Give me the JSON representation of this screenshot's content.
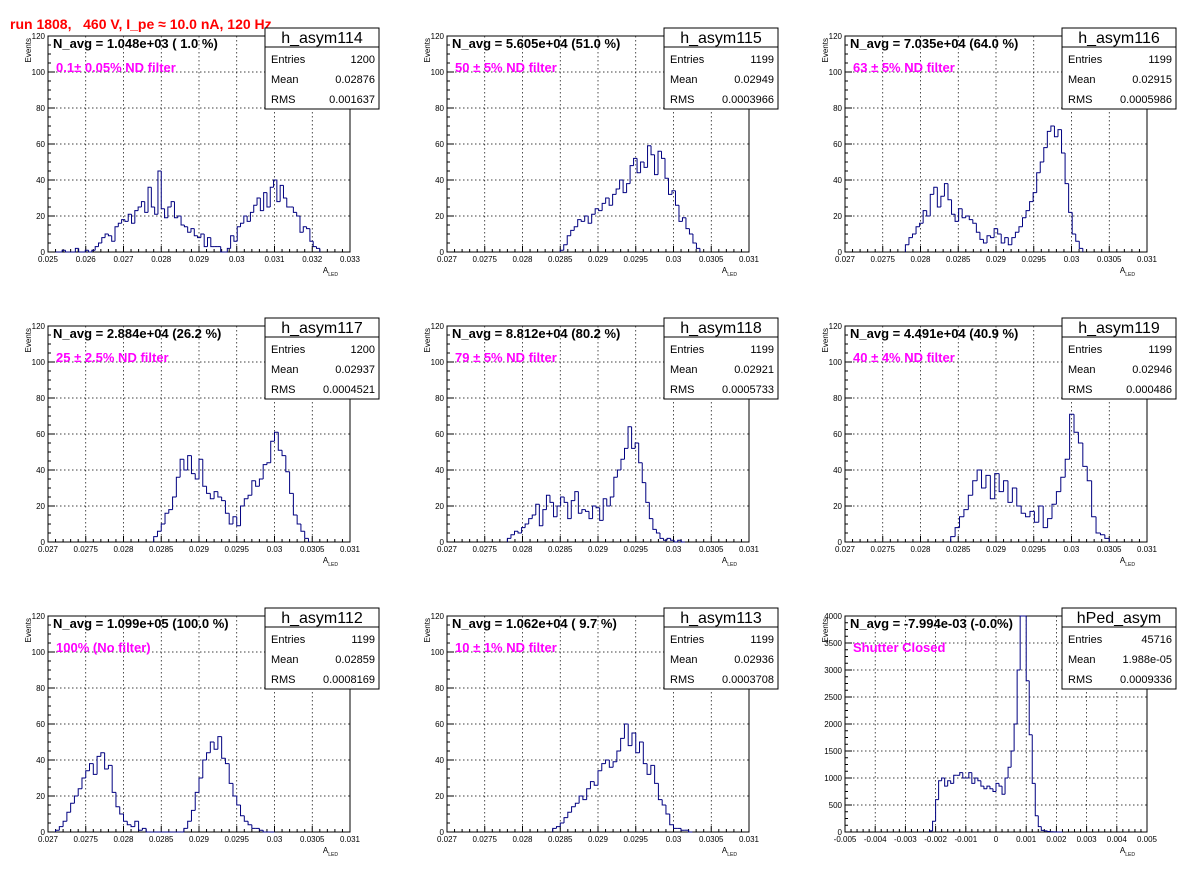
{
  "page_title": "run 1808,   460 V, I_pe ≈ 10.0 nA, 120 Hz",
  "colors": {
    "title": "#ff0000",
    "histogram": "#000080",
    "annotation": "#ff00ff",
    "grid": "#000000"
  },
  "chart_data": [
    {
      "type": "bar",
      "name": "h_asym114",
      "n_avg_label": "N_avg = 1.048e+03 ( 1.0 %)",
      "annotation": "0.1± 0.05% ND filter",
      "stats": {
        "entries_label": "Entries",
        "entries": "1200",
        "mean_label": "Mean",
        "mean": "0.02876",
        "rms_label": "RMS",
        "rms": "0.001637"
      },
      "xlabel": "A",
      "xlabel_sub": "LED",
      "ylabel": "Events",
      "xlim": [
        0.025,
        0.033
      ],
      "ylim": [
        0,
        120
      ],
      "xticks": [
        "0.025",
        "0.026",
        "0.027",
        "0.028",
        "0.029",
        "0.03",
        "0.031",
        "0.032",
        "0.033"
      ],
      "yticks": [
        "0",
        "20",
        "40",
        "60",
        "80",
        "100",
        "120"
      ],
      "grid": true,
      "bin_range": [
        0.0252,
        0.0322
      ],
      "values": [
        0,
        0,
        1,
        0,
        0,
        0,
        2,
        0,
        0,
        1,
        0,
        1,
        3,
        5,
        8,
        10,
        9,
        6,
        14,
        16,
        18,
        17,
        21,
        16,
        23,
        25,
        28,
        22,
        36,
        25,
        21,
        45,
        24,
        19,
        25,
        28,
        19,
        20,
        15,
        14,
        11,
        13,
        9,
        8,
        10,
        3,
        8,
        3,
        3,
        3,
        0,
        0,
        2,
        9,
        6,
        14,
        16,
        20,
        17,
        22,
        26,
        30,
        23,
        33,
        25,
        36,
        40,
        28,
        37,
        30,
        25,
        25,
        22,
        20,
        11,
        14,
        13,
        6,
        3,
        2
      ]
    },
    {
      "type": "bar",
      "name": "h_asym115",
      "n_avg_label": "N_avg = 5.605e+04 (51.0 %)",
      "annotation": "50 ± 5% ND filter",
      "stats": {
        "entries_label": "Entries",
        "entries": "1199",
        "mean_label": "Mean",
        "mean": "0.02949",
        "rms_label": "RMS",
        "rms": "0.0003966"
      },
      "xlabel": "A",
      "xlabel_sub": "LED",
      "ylabel": "Events",
      "xlim": [
        0.027,
        0.031
      ],
      "ylim": [
        0,
        120
      ],
      "xticks": [
        "0.027",
        "0.0275",
        "0.028",
        "0.0285",
        "0.029",
        "0.0295",
        "0.03",
        "0.0305",
        "0.031"
      ],
      "yticks": [
        "0",
        "20",
        "40",
        "60",
        "80",
        "100",
        "120"
      ],
      "grid": true,
      "bin_range": [
        0.0285,
        0.03035
      ],
      "values": [
        1,
        4,
        9,
        12,
        14,
        18,
        17,
        20,
        16,
        21,
        24,
        23,
        27,
        30,
        26,
        32,
        35,
        40,
        33,
        38,
        48,
        52,
        44,
        50,
        47,
        59,
        54,
        43,
        56,
        52,
        41,
        32,
        34,
        26,
        17,
        19,
        13,
        10,
        5,
        2
      ]
    },
    {
      "type": "bar",
      "name": "h_asym116",
      "n_avg_label": "N_avg = 7.035e+04 (64.0 %)",
      "annotation": "63 ± 5% ND filter",
      "stats": {
        "entries_label": "Entries",
        "entries": "1199",
        "mean_label": "Mean",
        "mean": "0.02915",
        "rms_label": "RMS",
        "rms": "0.0005986"
      },
      "xlabel": "A",
      "xlabel_sub": "LED",
      "ylabel": "Events",
      "xlim": [
        0.027,
        0.031
      ],
      "ylim": [
        0,
        120
      ],
      "xticks": [
        "0.027",
        "0.0275",
        "0.028",
        "0.0285",
        "0.029",
        "0.0295",
        "0.03",
        "0.0305",
        "0.031"
      ],
      "yticks": [
        "0",
        "20",
        "40",
        "60",
        "80",
        "100",
        "120"
      ],
      "grid": true,
      "bin_range": [
        0.0278,
        0.03015
      ],
      "values": [
        4,
        8,
        10,
        14,
        16,
        23,
        20,
        32,
        36,
        25,
        31,
        38,
        29,
        21,
        17,
        24,
        19,
        20,
        18,
        16,
        11,
        7,
        5,
        9,
        8,
        13,
        10,
        5,
        8,
        4,
        8,
        11,
        14,
        19,
        23,
        28,
        33,
        44,
        50,
        58,
        67,
        70,
        64,
        68,
        55,
        38,
        22,
        10,
        6,
        2
      ]
    },
    {
      "type": "bar",
      "name": "h_asym117",
      "n_avg_label": "N_avg = 2.884e+04 (26.2 %)",
      "annotation": "25 ± 2.5% ND filter",
      "stats": {
        "entries_label": "Entries",
        "entries": "1200",
        "mean_label": "Mean",
        "mean": "0.02937",
        "rms_label": "RMS",
        "rms": "0.0004521"
      },
      "xlabel": "A",
      "xlabel_sub": "LED",
      "ylabel": "Events",
      "xlim": [
        0.027,
        0.031
      ],
      "ylim": [
        0,
        120
      ],
      "xticks": [
        "0.027",
        "0.0275",
        "0.028",
        "0.0285",
        "0.029",
        "0.0295",
        "0.03",
        "0.0305",
        "0.031"
      ],
      "yticks": [
        "0",
        "20",
        "40",
        "60",
        "80",
        "100",
        "120"
      ],
      "grid": true,
      "bin_range": [
        0.0284,
        0.03045
      ],
      "values": [
        3,
        6,
        10,
        16,
        18,
        25,
        36,
        46,
        40,
        48,
        38,
        35,
        46,
        31,
        27,
        24,
        28,
        25,
        23,
        16,
        10,
        14,
        9,
        20,
        24,
        26,
        34,
        31,
        35,
        43,
        44,
        56,
        61,
        51,
        48,
        39,
        27,
        15,
        10,
        6,
        2
      ]
    },
    {
      "type": "bar",
      "name": "h_asym118",
      "n_avg_label": "N_avg = 8.812e+04 (80.2 %)",
      "annotation": "79 ± 5% ND filter",
      "stats": {
        "entries_label": "Entries",
        "entries": "1199",
        "mean_label": "Mean",
        "mean": "0.02921",
        "rms_label": "RMS",
        "rms": "0.0005733"
      },
      "xlabel": "A",
      "xlabel_sub": "LED",
      "ylabel": "Events",
      "xlim": [
        0.027,
        0.031
      ],
      "ylim": [
        0,
        120
      ],
      "xticks": [
        "0.027",
        "0.0275",
        "0.028",
        "0.0285",
        "0.029",
        "0.0295",
        "0.03",
        "0.0305",
        "0.031"
      ],
      "yticks": [
        "0",
        "20",
        "40",
        "60",
        "80",
        "100",
        "120"
      ],
      "grid": true,
      "bin_range": [
        0.0278,
        0.03015
      ],
      "values": [
        2,
        4,
        6,
        5,
        8,
        10,
        13,
        15,
        21,
        9,
        18,
        26,
        22,
        14,
        20,
        25,
        22,
        13,
        23,
        28,
        16,
        18,
        17,
        13,
        20,
        19,
        12,
        24,
        20,
        25,
        36,
        40,
        46,
        52,
        64,
        52,
        55,
        44,
        33,
        22,
        13,
        7,
        5,
        2,
        1,
        2,
        1,
        0,
        1,
        0
      ]
    },
    {
      "type": "bar",
      "name": "h_asym119",
      "n_avg_label": "N_avg = 4.491e+04 (40.9 %)",
      "annotation": "40 ± 4% ND filter",
      "stats": {
        "entries_label": "Entries",
        "entries": "1199",
        "mean_label": "Mean",
        "mean": "0.02946",
        "rms_label": "RMS",
        "rms": "0.000486"
      },
      "xlabel": "A",
      "xlabel_sub": "LED",
      "ylabel": "Events",
      "xlim": [
        0.027,
        0.031
      ],
      "ylim": [
        0,
        120
      ],
      "xticks": [
        "0.027",
        "0.0275",
        "0.028",
        "0.0285",
        "0.029",
        "0.0295",
        "0.03",
        "0.0305",
        "0.031"
      ],
      "yticks": [
        "0",
        "20",
        "40",
        "60",
        "80",
        "100",
        "120"
      ],
      "grid": true,
      "bin_range": [
        0.0284,
        0.0305
      ],
      "values": [
        3,
        8,
        14,
        18,
        26,
        34,
        40,
        30,
        37,
        24,
        38,
        28,
        34,
        22,
        30,
        20,
        16,
        14,
        17,
        11,
        20,
        8,
        13,
        21,
        28,
        36,
        46,
        71,
        61,
        55,
        42,
        34,
        14,
        5,
        4,
        2
      ]
    },
    {
      "type": "bar",
      "name": "h_asym112",
      "n_avg_label": "N_avg = 1.099e+05 (100.0 %)",
      "annotation": "100% (No filter)",
      "stats": {
        "entries_label": "Entries",
        "entries": "1199",
        "mean_label": "Mean",
        "mean": "0.02859",
        "rms_label": "RMS",
        "rms": "0.0008169"
      },
      "xlabel": "A",
      "xlabel_sub": "LED",
      "ylabel": "Events",
      "xlim": [
        0.027,
        0.031
      ],
      "ylim": [
        0,
        120
      ],
      "xticks": [
        "0.027",
        "0.0275",
        "0.028",
        "0.0285",
        "0.029",
        "0.0295",
        "0.03",
        "0.0305",
        "0.031"
      ],
      "yticks": [
        "0",
        "20",
        "40",
        "60",
        "80",
        "100",
        "120"
      ],
      "grid": true,
      "bin_range": [
        0.0271,
        0.03
      ],
      "values": [
        1,
        3,
        6,
        11,
        16,
        20,
        24,
        30,
        34,
        38,
        32,
        42,
        44,
        35,
        37,
        22,
        14,
        10,
        6,
        4,
        3,
        6,
        1,
        2,
        0,
        0,
        0,
        0,
        0,
        0,
        0,
        0,
        0,
        0,
        2,
        6,
        12,
        22,
        30,
        40,
        44,
        50,
        46,
        53,
        41,
        38,
        27,
        20,
        15,
        9,
        6,
        4,
        2,
        2,
        1,
        0,
        0,
        0
      ]
    },
    {
      "type": "bar",
      "name": "h_asym113",
      "n_avg_label": "N_avg = 1.062e+04 ( 9.7 %)",
      "annotation": "10 ± 1% ND filter",
      "stats": {
        "entries_label": "Entries",
        "entries": "1199",
        "mean_label": "Mean",
        "mean": "0.02936",
        "rms_label": "RMS",
        "rms": "0.0003708"
      },
      "xlabel": "A",
      "xlabel_sub": "LED",
      "ylabel": "Events",
      "xlim": [
        0.027,
        0.031
      ],
      "ylim": [
        0,
        120
      ],
      "xticks": [
        "0.027",
        "0.0275",
        "0.028",
        "0.0285",
        "0.029",
        "0.0295",
        "0.03",
        "0.0305",
        "0.031"
      ],
      "yticks": [
        "0",
        "20",
        "40",
        "60",
        "80",
        "100",
        "120"
      ],
      "grid": true,
      "bin_range": [
        0.0284,
        0.03025
      ],
      "values": [
        2,
        3,
        5,
        8,
        11,
        14,
        16,
        20,
        18,
        24,
        28,
        26,
        34,
        38,
        40,
        36,
        39,
        45,
        52,
        60,
        48,
        55,
        44,
        50,
        38,
        32,
        37,
        27,
        18,
        15,
        10,
        4,
        2,
        2,
        1,
        1,
        0
      ]
    },
    {
      "type": "bar",
      "name": "hPed_asym",
      "n_avg_label": "N_avg = -7.994e-03 (-0.0%)",
      "annotation": "Shutter Closed",
      "stats": {
        "entries_label": "Entries",
        "entries": "45716",
        "mean_label": "Mean",
        "mean": "1.988e-05",
        "rms_label": "RMS",
        "rms": "0.0009336"
      },
      "xlabel": "A",
      "xlabel_sub": "LED",
      "ylabel": "Events",
      "xlim": [
        -0.005,
        0.005
      ],
      "ylim": [
        0,
        4000
      ],
      "xticks": [
        "-0.005",
        "-0.004",
        "-0.003",
        "-0.002",
        "-0.001",
        "0",
        "0.001",
        "0.002",
        "0.003",
        "0.004",
        "0.005"
      ],
      "yticks": [
        "0",
        "500",
        "1000",
        "1500",
        "2000",
        "2500",
        "3000",
        "3500",
        "4000"
      ],
      "grid": true,
      "bin_range": [
        -0.0022,
        0.0022
      ],
      "values": [
        20,
        200,
        600,
        950,
        1000,
        850,
        950,
        900,
        1050,
        1050,
        1100,
        1000,
        1000,
        1100,
        900,
        1000,
        950,
        850,
        800,
        850,
        800,
        750,
        900,
        850,
        700,
        1000,
        1200,
        1500,
        2000,
        3000,
        4000,
        4000,
        2800,
        1800,
        900,
        300,
        100,
        30,
        20,
        10,
        5,
        2,
        0,
        0
      ]
    }
  ]
}
